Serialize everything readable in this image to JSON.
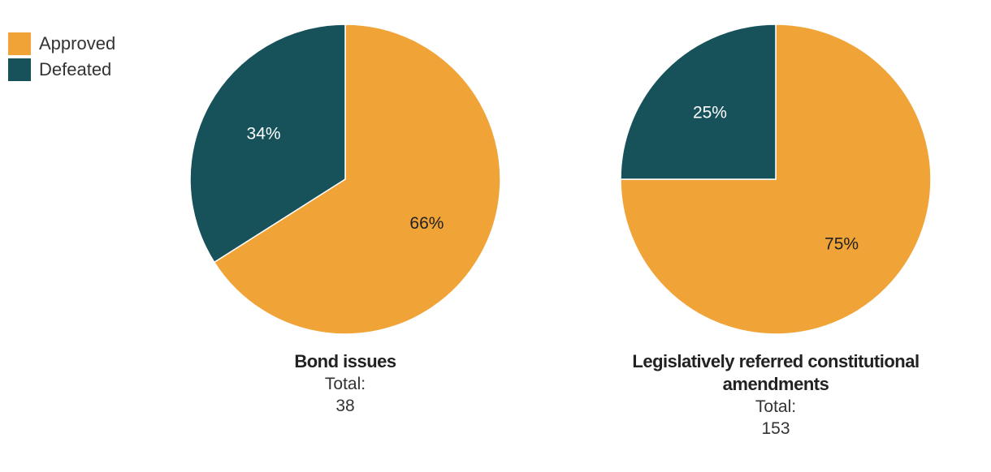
{
  "legend": [
    {
      "label": "Approved",
      "color": "#F0A337"
    },
    {
      "label": "Defeated",
      "color": "#17525B"
    }
  ],
  "chart_data": [
    {
      "type": "pie",
      "title": "Bond issues",
      "total_label": "Total:",
      "total": "38",
      "slices": [
        {
          "name": "Approved",
          "value": 66,
          "label": "66%",
          "color": "#F0A337",
          "label_color": "#222222"
        },
        {
          "name": "Defeated",
          "value": 34,
          "label": "34%",
          "color": "#17525B",
          "label_color": "#ffffff"
        }
      ]
    },
    {
      "type": "pie",
      "title": "Legislatively referred constitutional amendments",
      "total_label": "Total:",
      "total": "153",
      "slices": [
        {
          "name": "Approved",
          "value": 75,
          "label": "75%",
          "color": "#F0A337",
          "label_color": "#222222"
        },
        {
          "name": "Defeated",
          "value": 25,
          "label": "25%",
          "color": "#17525B",
          "label_color": "#ffffff"
        }
      ]
    }
  ]
}
